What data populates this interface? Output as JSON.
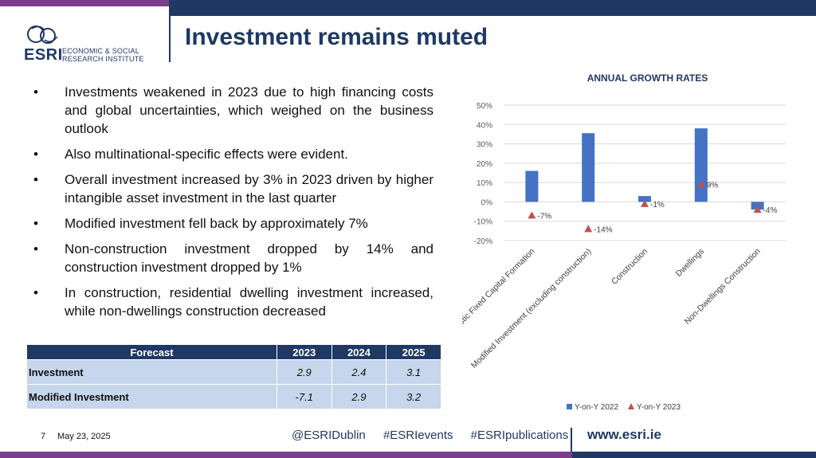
{
  "header": {
    "title": "Investment remains muted",
    "logo": {
      "abbr": "ESRI",
      "line1": "ECONOMIC & SOCIAL",
      "line2": "RESEARCH INSTITUTE"
    }
  },
  "bullets": [
    "Investments weakened in 2023 due to high financing costs and global uncertainties, which weighed on the business outlook",
    "Also multinational-specific effects were evident.",
    "Overall investment increased by 3% in 2023 driven by higher intangible asset investment in the last quarter",
    "Modified investment fell back by approximately 7%",
    "Non-construction investment dropped by 14% and construction investment dropped by 1%",
    "In construction, residential dwelling investment increased, while non-dwellings construction decreased"
  ],
  "forecast_table": {
    "headers": [
      "Forecast",
      "2023",
      "2024",
      "2025"
    ],
    "rows": [
      {
        "label": "Investment",
        "values": [
          "2.9",
          "2.4",
          "3.1"
        ]
      },
      {
        "label": "Modified Investment",
        "values": [
          "-7.1",
          "2.9",
          "3.2"
        ]
      }
    ]
  },
  "chart_data": {
    "type": "bar",
    "title": "ANNUAL GROWTH RATES",
    "categories": [
      "Modified Gross Domestic Fixed Capital Formation",
      "Modified Investment (excluding construction)",
      "Construction",
      "Dwellings",
      "Non-Dwellings Construction"
    ],
    "series": [
      {
        "name": "Y-on-Y 2022",
        "type": "bar",
        "color": "#4472c4",
        "values": [
          16,
          35.5,
          3,
          38,
          -4
        ]
      },
      {
        "name": "Y-on-Y 2023",
        "type": "marker",
        "marker": "triangle",
        "color": "#c0504d",
        "values": [
          -7,
          -14,
          -1,
          9,
          -4
        ],
        "labels": [
          "-7%",
          "-14%",
          "-1%",
          "9%",
          "-4%"
        ]
      }
    ],
    "ylim": [
      -20,
      50
    ],
    "yticks": [
      "50%",
      "40%",
      "30%",
      "20%",
      "10%",
      "0%",
      "-10%",
      "-20%"
    ],
    "ytick_values": [
      50,
      40,
      30,
      20,
      10,
      0,
      -10,
      -20
    ],
    "grid": true,
    "legend": "bottom"
  },
  "footer": {
    "page_number": "7",
    "date": "May 23, 2025",
    "handles": [
      "@ESRIDublin",
      "#ESRIevents",
      "#ESRIpublications"
    ],
    "url": "www.esri.ie"
  }
}
